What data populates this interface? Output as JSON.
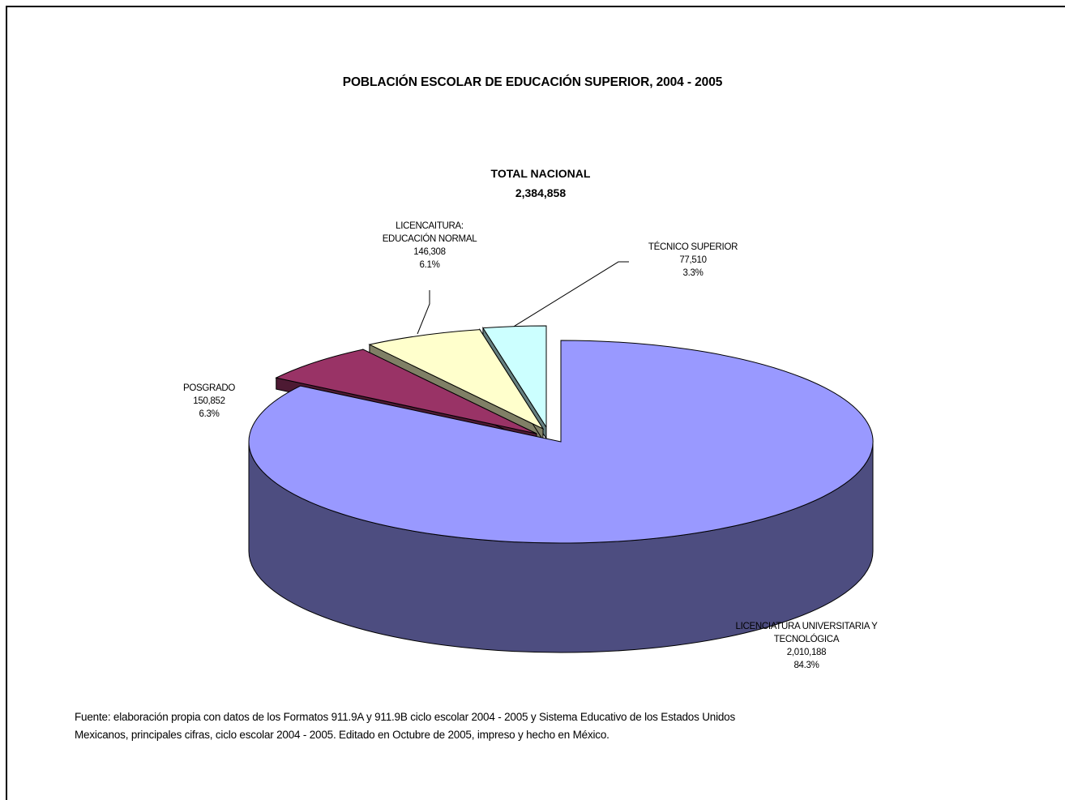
{
  "chart_data": {
    "type": "pie",
    "title": "POBLACIÓN ESCOLAR DE EDUCACIÓN SUPERIOR, 2004 - 2005",
    "subtitle": "TOTAL NACIONAL",
    "total_value": "2,384,858",
    "slices": [
      {
        "label_lines": [
          "LICENCIATURA UNIVERSITARIA Y",
          "TECNOLÓGICA"
        ],
        "value": 2010188,
        "value_text": "2,010,188",
        "percent_text": "84.3%",
        "percent": 84.3,
        "top_color": "#9999ff",
        "side_color": "#4d4d80"
      },
      {
        "label_lines": [
          "POSGRADO"
        ],
        "value": 150852,
        "value_text": "150,852",
        "percent_text": "6.3%",
        "percent": 6.3,
        "top_color": "#993366",
        "side_color": "#4d1a33"
      },
      {
        "label_lines": [
          "LICENCAITURA:",
          "EDUCACIÓN NORMAL"
        ],
        "value": 146308,
        "value_text": "146,308",
        "percent_text": "6.1%",
        "percent": 6.1,
        "top_color": "#ffffcc",
        "side_color": "#808066"
      },
      {
        "label_lines": [
          "TÉCNICO SUPERIOR"
        ],
        "value": 77510,
        "value_text": "77,510",
        "percent_text": "3.3%",
        "percent": 3.3,
        "top_color": "#ccffff",
        "side_color": "#668080"
      }
    ],
    "style": "3d-exploded-pie"
  },
  "source_note": "Fuente: elaboración propia con datos de los Formatos 911.9A y 911.9B ciclo escolar 2004 - 2005  y Sistema Educativo de los Estados Unidos Mexicanos, principales cifras, ciclo escolar 2004 - 2005. Editado en Octubre de 2005, impreso y hecho en México."
}
